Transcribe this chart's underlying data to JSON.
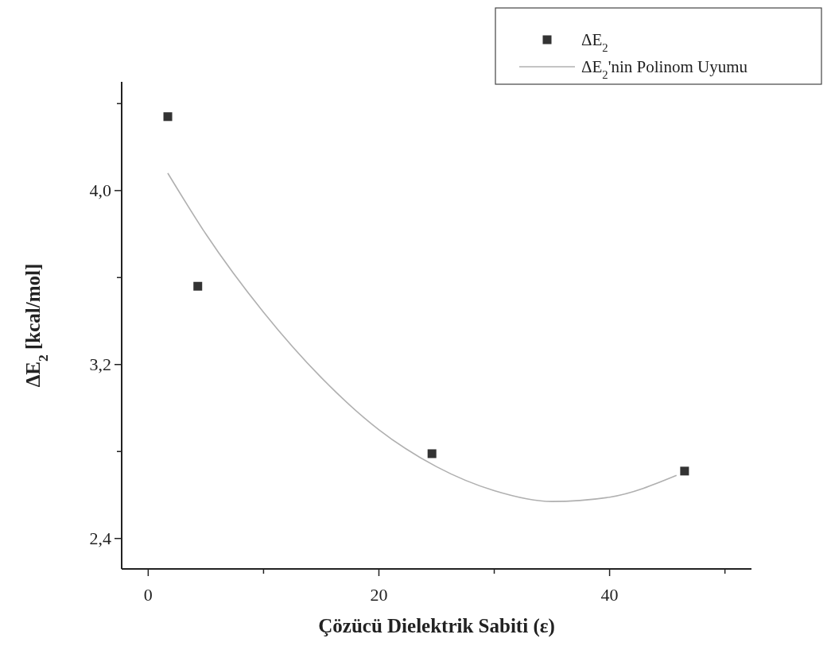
{
  "chart_data": {
    "type": "scatter",
    "xlabel": "Çözücü Dielektrik Sabiti (ε)",
    "ylabel": "ΔE$_{2}$ [kcal/mol]",
    "xlim": [
      -2.3,
      52.3
    ],
    "ylim": [
      2.26,
      4.5
    ],
    "xticks": [
      0,
      {
        "value": 10,
        "label": null
      },
      20,
      {
        "value": 30,
        "label": null
      },
      40,
      {
        "value": 50,
        "label": null
      }
    ],
    "yticks": [
      {
        "value": 2.4,
        "label": "2,4"
      },
      {
        "value": 2.8,
        "label": null
      },
      {
        "value": 3.2,
        "label": "3,2"
      },
      {
        "value": 3.6,
        "label": null
      },
      {
        "value": 4.0,
        "label": "4,0"
      },
      {
        "value": 4.4,
        "label": null
      }
    ],
    "legend": "top right",
    "grid": false,
    "series": [
      {
        "name": "ΔE$_{2}$",
        "marker": "square",
        "color": "#333333",
        "x": [
          1.7,
          4.3,
          24.6,
          46.5
        ],
        "values": [
          4.34,
          3.56,
          2.79,
          2.71
        ]
      },
      {
        "name": "ΔE$_{2}$'nin Polinom Uyumu",
        "type": "line",
        "marker": "none",
        "line_style": "solid",
        "color": "#b0b0b0",
        "x": [
          1.7,
          5,
          10,
          15,
          20,
          25,
          30,
          35,
          40,
          45.8
        ],
        "values": [
          4.08,
          3.8,
          3.44,
          3.14,
          2.9,
          2.73,
          2.62,
          2.57,
          2.59,
          2.69
        ]
      }
    ]
  }
}
